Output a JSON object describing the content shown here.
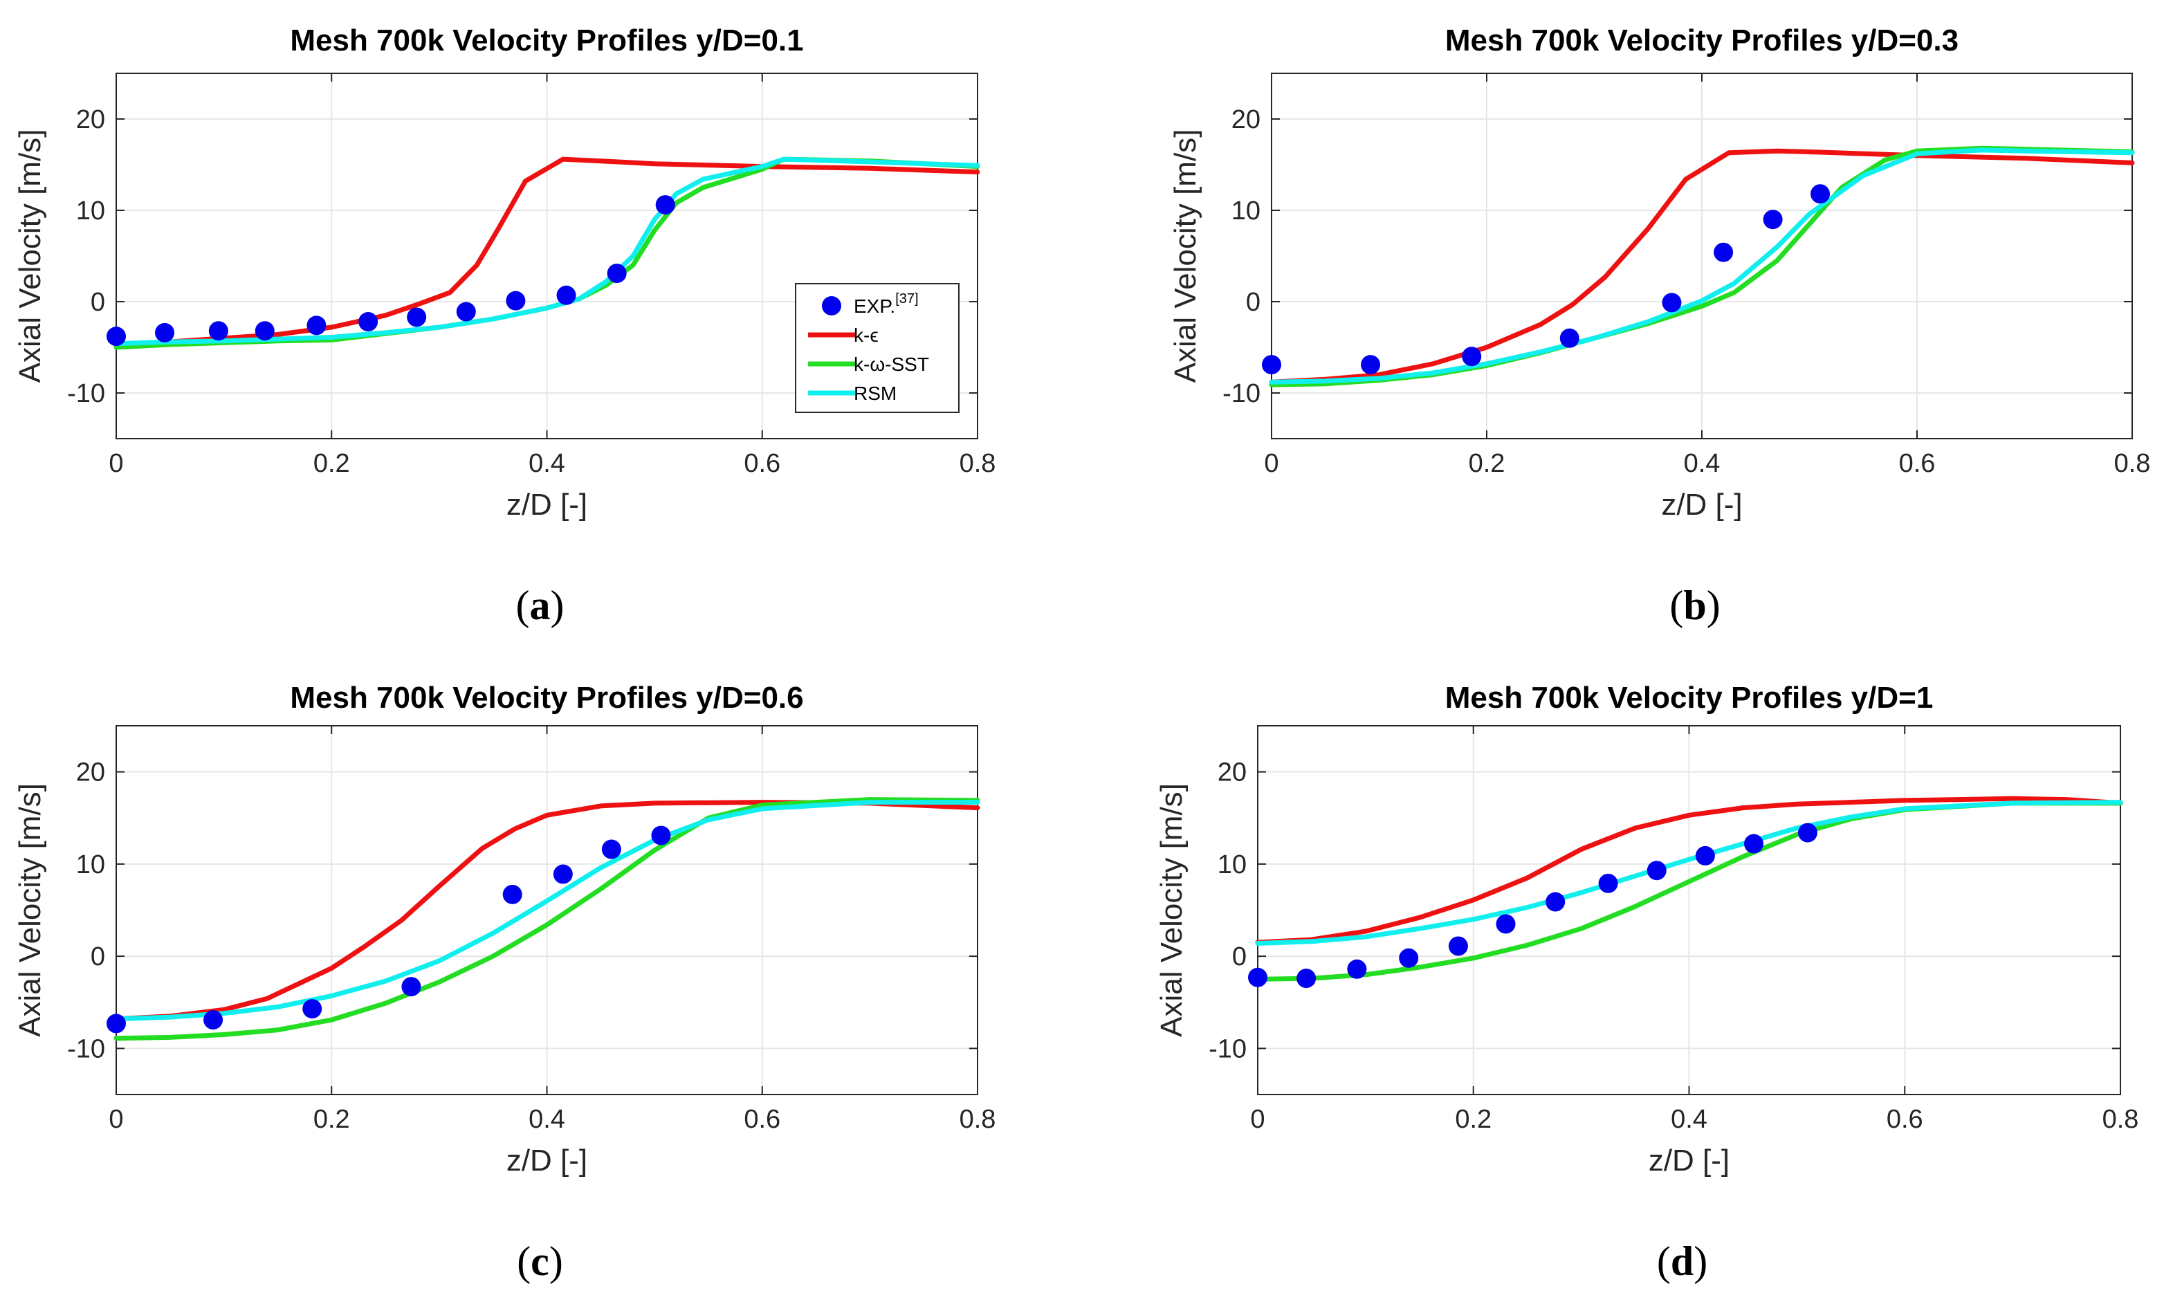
{
  "chart_data": [
    {
      "type": "line",
      "panel_label": "a",
      "title": "Mesh 700k Velocity Profiles y/D=0.1",
      "xlabel": "z/D [-]",
      "ylabel": "Axial Velocity [m/s]",
      "xlim": [
        0,
        0.8
      ],
      "ylim": [
        -15,
        25
      ],
      "xticks": [
        "0",
        "0.2",
        "0.4",
        "0.6",
        "0.8"
      ],
      "yticks": [
        "-10",
        "0",
        "10",
        "20"
      ],
      "grid": true,
      "legend": {
        "placement": "right",
        "entries": [
          "EXP.",
          "k-ϵ",
          "k-ω-SST",
          "RSM"
        ],
        "exp_superscript": "[37]"
      },
      "series": [
        {
          "name": "EXP.",
          "style": "markers",
          "color": "#0000ee",
          "x": [
            0,
            0.045,
            0.095,
            0.138,
            0.186,
            0.234,
            0.279,
            0.325,
            0.371,
            0.418,
            0.465,
            0.51
          ],
          "y": [
            -3.8,
            -3.4,
            -3.2,
            -3.2,
            -2.6,
            -2.2,
            -1.7,
            -1.1,
            0.1,
            0.7,
            3.1,
            10.6
          ]
        },
        {
          "name": "k-ϵ",
          "style": "line",
          "color": "#ee1111",
          "x": [
            0,
            0.05,
            0.1,
            0.15,
            0.2,
            0.25,
            0.28,
            0.31,
            0.335,
            0.355,
            0.38,
            0.415,
            0.45,
            0.5,
            0.6,
            0.7,
            0.8
          ],
          "y": [
            -4.8,
            -4.4,
            -4.0,
            -3.6,
            -2.8,
            -1.5,
            -0.3,
            1.0,
            4.0,
            8.0,
            13.2,
            15.6,
            15.4,
            15.1,
            14.8,
            14.6,
            14.2
          ]
        },
        {
          "name": "k-ω-SST",
          "style": "line",
          "color": "#22dd22",
          "x": [
            0,
            0.05,
            0.1,
            0.15,
            0.2,
            0.25,
            0.3,
            0.35,
            0.4,
            0.43,
            0.455,
            0.48,
            0.5,
            0.52,
            0.545,
            0.6,
            0.62,
            0.7,
            0.8
          ],
          "y": [
            -5.0,
            -4.7,
            -4.5,
            -4.3,
            -4.2,
            -3.5,
            -2.8,
            -1.9,
            -0.7,
            0.3,
            1.8,
            4.0,
            7.8,
            10.8,
            12.5,
            14.5,
            15.6,
            15.4,
            14.8
          ]
        },
        {
          "name": "RSM",
          "style": "line",
          "color": "#11eeee",
          "x": [
            0,
            0.05,
            0.1,
            0.15,
            0.2,
            0.25,
            0.3,
            0.35,
            0.4,
            0.43,
            0.455,
            0.48,
            0.5,
            0.52,
            0.545,
            0.6,
            0.62,
            0.7,
            0.8
          ],
          "y": [
            -4.6,
            -4.4,
            -4.3,
            -4.1,
            -3.9,
            -3.4,
            -2.8,
            -1.9,
            -0.7,
            0.3,
            2.2,
            5.0,
            9.0,
            11.8,
            13.4,
            14.8,
            15.6,
            15.3,
            14.9
          ]
        }
      ]
    },
    {
      "type": "line",
      "panel_label": "b",
      "title": "Mesh 700k Velocity Profiles y/D=0.3",
      "xlabel": "z/D [-]",
      "ylabel": "Axial Velocity [m/s]",
      "xlim": [
        0,
        0.8
      ],
      "ylim": [
        -15,
        25
      ],
      "xticks": [
        "0",
        "0.2",
        "0.4",
        "0.6",
        "0.8"
      ],
      "yticks": [
        "-10",
        "0",
        "10",
        "20"
      ],
      "grid": true,
      "series": [
        {
          "name": "EXP.",
          "style": "markers",
          "color": "#0000ee",
          "x": [
            0,
            0.092,
            0.186,
            0.277,
            0.372,
            0.42,
            0.466,
            0.51
          ],
          "y": [
            -6.9,
            -6.9,
            -6.0,
            -4.0,
            -0.1,
            5.4,
            9.0,
            11.8
          ]
        },
        {
          "name": "k-ϵ",
          "style": "line",
          "color": "#ee1111",
          "x": [
            0,
            0.05,
            0.1,
            0.15,
            0.2,
            0.25,
            0.28,
            0.31,
            0.35,
            0.385,
            0.425,
            0.47,
            0.5,
            0.6,
            0.7,
            0.8
          ],
          "y": [
            -8.8,
            -8.5,
            -8.0,
            -6.8,
            -5.0,
            -2.5,
            -0.3,
            2.7,
            8.0,
            13.4,
            16.3,
            16.5,
            16.4,
            16.0,
            15.7,
            15.2
          ]
        },
        {
          "name": "k-ω-SST",
          "style": "line",
          "color": "#22dd22",
          "x": [
            0,
            0.05,
            0.1,
            0.15,
            0.2,
            0.25,
            0.3,
            0.35,
            0.4,
            0.43,
            0.47,
            0.5,
            0.53,
            0.57,
            0.6,
            0.66,
            0.7,
            0.8
          ],
          "y": [
            -9.1,
            -9.0,
            -8.6,
            -8.0,
            -7.0,
            -5.6,
            -4.0,
            -2.4,
            -0.5,
            1.0,
            4.5,
            8.5,
            12.5,
            15.5,
            16.5,
            16.8,
            16.7,
            16.4
          ]
        },
        {
          "name": "RSM",
          "style": "line",
          "color": "#11eeee",
          "x": [
            0,
            0.05,
            0.1,
            0.15,
            0.2,
            0.25,
            0.3,
            0.35,
            0.4,
            0.43,
            0.47,
            0.5,
            0.55,
            0.6,
            0.66,
            0.7,
            0.8
          ],
          "y": [
            -8.8,
            -8.7,
            -8.4,
            -7.8,
            -6.8,
            -5.5,
            -4.0,
            -2.2,
            0.1,
            2.0,
            6.0,
            9.6,
            13.8,
            16.2,
            16.6,
            16.5,
            16.3
          ]
        }
      ]
    },
    {
      "type": "line",
      "panel_label": "c",
      "title": "Mesh 700k Velocity Profiles y/D=0.6",
      "xlabel": "z/D [-]",
      "ylabel": "Axial Velocity [m/s]",
      "xlim": [
        0,
        0.8
      ],
      "ylim": [
        -15,
        25
      ],
      "xticks": [
        "0",
        "0.2",
        "0.4",
        "0.6",
        "0.8"
      ],
      "yticks": [
        "-10",
        "0",
        "10",
        "20"
      ],
      "grid": true,
      "series": [
        {
          "name": "EXP.",
          "style": "markers",
          "color": "#0000ee",
          "x": [
            0,
            0.09,
            0.182,
            0.274,
            0.368,
            0.415,
            0.46,
            0.506
          ],
          "y": [
            -7.3,
            -6.9,
            -5.7,
            -3.3,
            6.7,
            8.9,
            11.6,
            13.1
          ]
        },
        {
          "name": "k-ϵ",
          "style": "line",
          "color": "#ee1111",
          "x": [
            0,
            0.05,
            0.1,
            0.14,
            0.2,
            0.23,
            0.265,
            0.3,
            0.34,
            0.37,
            0.4,
            0.45,
            0.5,
            0.6,
            0.7,
            0.8
          ],
          "y": [
            -6.8,
            -6.5,
            -5.8,
            -4.6,
            -1.3,
            1.0,
            3.9,
            7.6,
            11.7,
            13.8,
            15.3,
            16.3,
            16.6,
            16.7,
            16.6,
            16.1
          ]
        },
        {
          "name": "k-ω-SST",
          "style": "line",
          "color": "#22dd22",
          "x": [
            0,
            0.05,
            0.1,
            0.15,
            0.2,
            0.25,
            0.3,
            0.35,
            0.4,
            0.45,
            0.5,
            0.55,
            0.6,
            0.7,
            0.8
          ],
          "y": [
            -8.9,
            -8.8,
            -8.5,
            -8.0,
            -6.9,
            -5.1,
            -2.8,
            0.0,
            3.4,
            7.3,
            11.5,
            15.0,
            16.4,
            17.0,
            16.9
          ]
        },
        {
          "name": "RSM",
          "style": "line",
          "color": "#11eeee",
          "x": [
            0,
            0.05,
            0.1,
            0.15,
            0.2,
            0.25,
            0.3,
            0.35,
            0.4,
            0.45,
            0.5,
            0.55,
            0.6,
            0.7,
            0.8
          ],
          "y": [
            -6.8,
            -6.6,
            -6.2,
            -5.5,
            -4.3,
            -2.7,
            -0.5,
            2.5,
            6.0,
            9.6,
            12.6,
            14.8,
            16.0,
            16.7,
            16.7
          ]
        }
      ]
    },
    {
      "type": "line",
      "panel_label": "d",
      "title": "Mesh 700k Velocity Profiles y/D=1",
      "xlabel": "z/D [-]",
      "ylabel": "Axial Velocity [m/s]",
      "xlim": [
        0,
        0.8
      ],
      "ylim": [
        -15,
        25
      ],
      "xticks": [
        "0",
        "0.2",
        "0.4",
        "0.6",
        "0.8"
      ],
      "yticks": [
        "-10",
        "0",
        "10",
        "20"
      ],
      "grid": true,
      "series": [
        {
          "name": "EXP.",
          "style": "markers",
          "color": "#0000ee",
          "x": [
            0,
            0.045,
            0.092,
            0.14,
            0.186,
            0.23,
            0.276,
            0.325,
            0.37,
            0.415,
            0.46,
            0.51
          ],
          "y": [
            -2.3,
            -2.4,
            -1.4,
            -0.2,
            1.1,
            3.5,
            5.9,
            7.9,
            9.3,
            10.9,
            12.2,
            13.4
          ]
        },
        {
          "name": "k-ϵ",
          "style": "line",
          "color": "#ee1111",
          "x": [
            0,
            0.05,
            0.1,
            0.15,
            0.2,
            0.25,
            0.3,
            0.35,
            0.4,
            0.45,
            0.5,
            0.6,
            0.7,
            0.75,
            0.8
          ],
          "y": [
            1.5,
            1.8,
            2.7,
            4.2,
            6.1,
            8.5,
            11.6,
            13.9,
            15.3,
            16.1,
            16.5,
            16.9,
            17.1,
            17.0,
            16.6
          ]
        },
        {
          "name": "k-ω-SST",
          "style": "line",
          "color": "#22dd22",
          "x": [
            0,
            0.05,
            0.1,
            0.15,
            0.2,
            0.25,
            0.3,
            0.35,
            0.4,
            0.45,
            0.5,
            0.55,
            0.6,
            0.7,
            0.8
          ],
          "y": [
            -2.5,
            -2.4,
            -2.0,
            -1.2,
            -0.2,
            1.2,
            3.0,
            5.4,
            8.1,
            10.8,
            13.2,
            14.9,
            15.9,
            16.6,
            16.6
          ]
        },
        {
          "name": "RSM",
          "style": "line",
          "color": "#11eeee",
          "x": [
            0,
            0.05,
            0.1,
            0.15,
            0.2,
            0.25,
            0.3,
            0.35,
            0.4,
            0.45,
            0.5,
            0.55,
            0.6,
            0.7,
            0.8
          ],
          "y": [
            1.4,
            1.6,
            2.1,
            3.0,
            4.0,
            5.3,
            6.9,
            8.7,
            10.5,
            12.2,
            13.9,
            15.1,
            16.0,
            16.6,
            16.7
          ]
        }
      ]
    }
  ]
}
